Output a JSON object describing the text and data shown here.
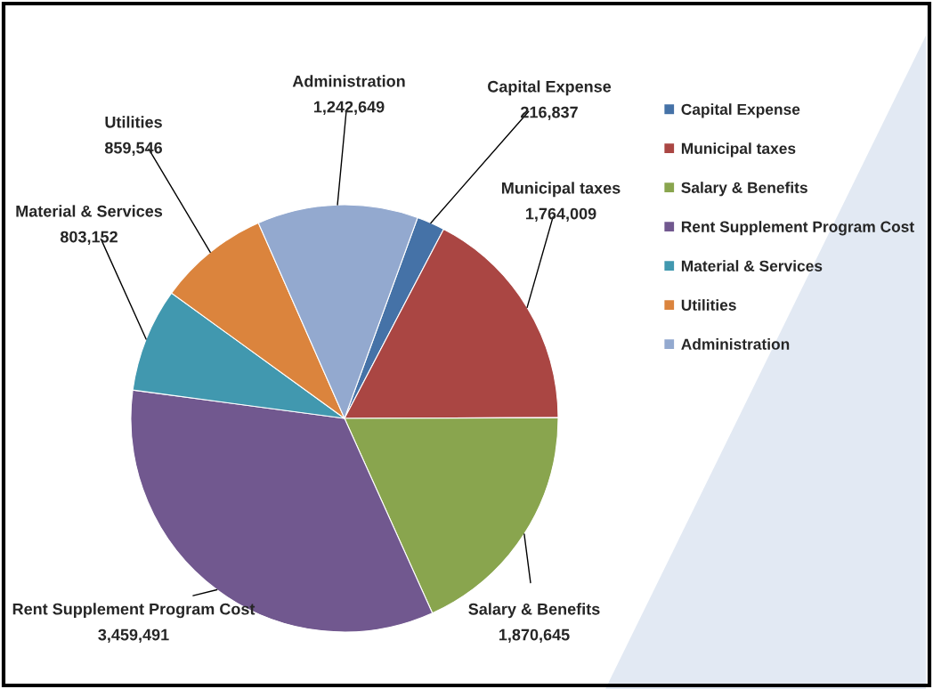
{
  "chart_data": {
    "type": "pie",
    "categories": [
      "Capital Expense",
      "Municipal taxes",
      "Salary & Benefits",
      "Rent Supplement Program Cost",
      "Material & Services",
      "Utilities",
      "Administration"
    ],
    "values": [
      216837,
      1764009,
      1870645,
      3459491,
      803152,
      859546,
      1242649
    ],
    "colors": [
      "#4572a7",
      "#aa4643",
      "#89a54e",
      "#71588f",
      "#4198af",
      "#db843d",
      "#93a9cf"
    ],
    "value_labels": [
      "216,837",
      "1,764,009",
      "1,870,645",
      "3,459,491",
      "803,152",
      "859,546",
      "1,242,649"
    ],
    "legend": "right"
  }
}
